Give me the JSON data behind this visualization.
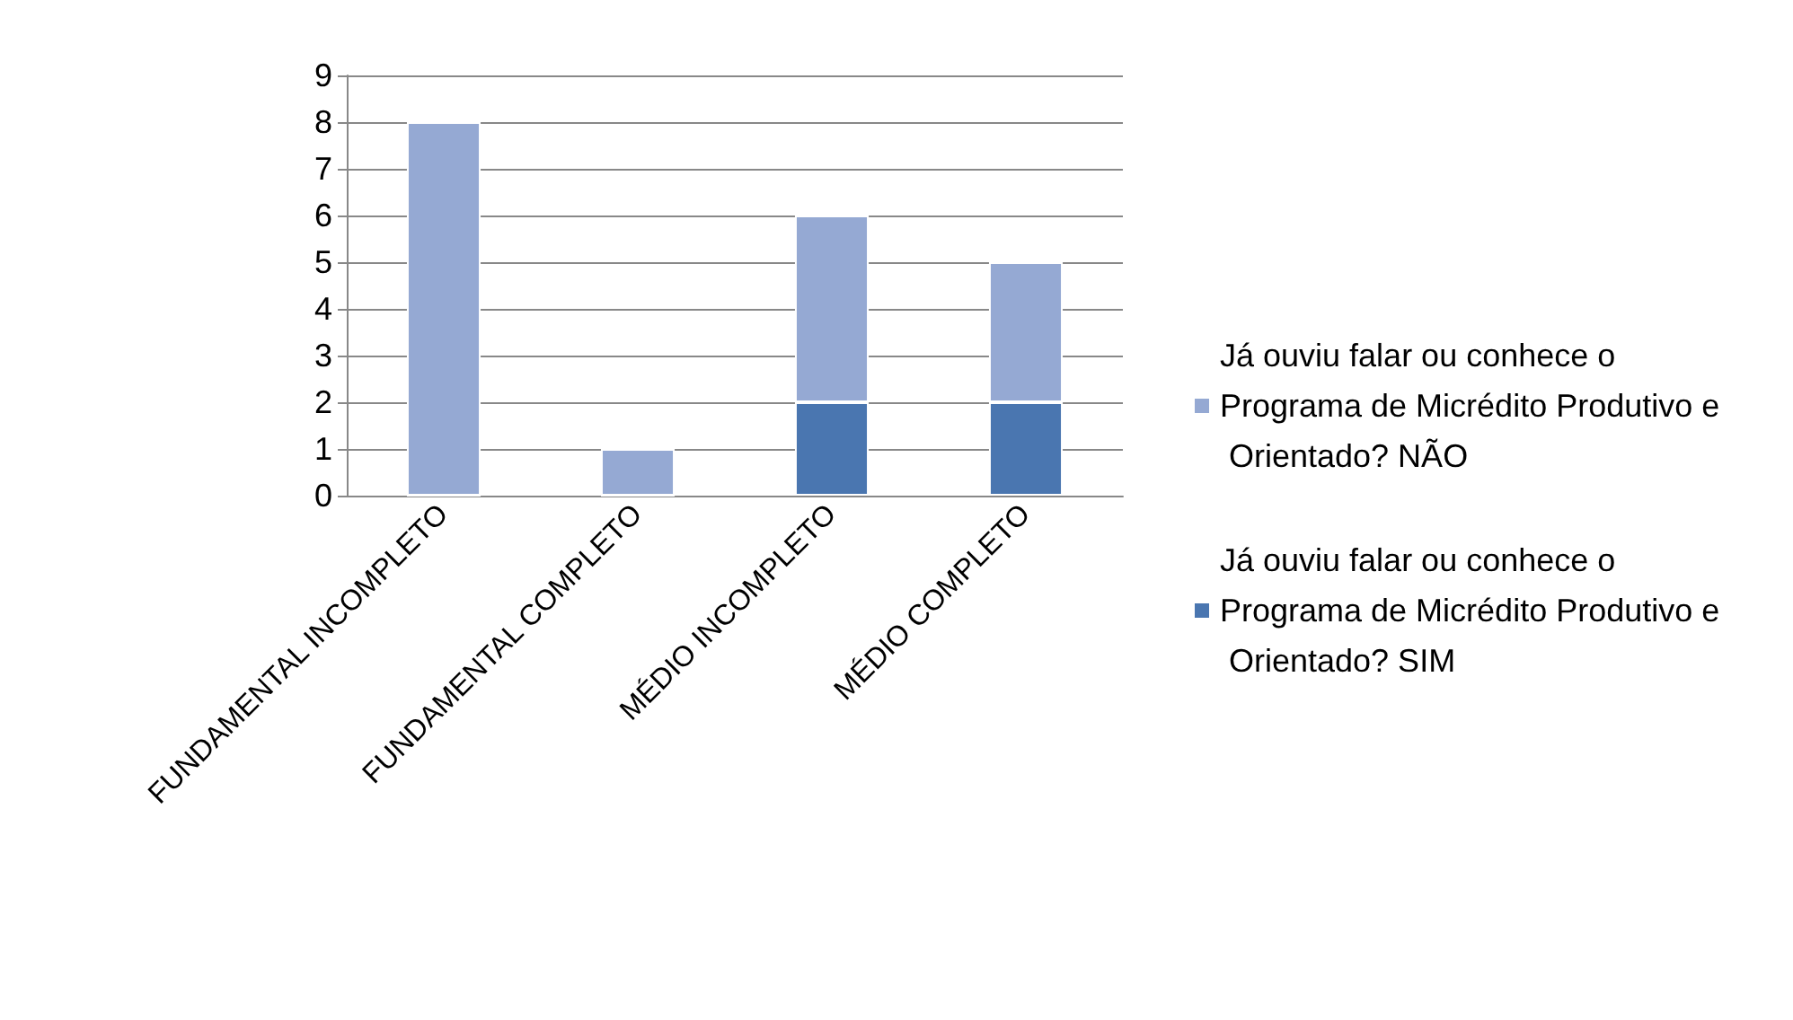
{
  "chart_data": {
    "type": "bar",
    "stacked": true,
    "categories": [
      "FUNDAMENTAL INCOMPLETO",
      "FUNDAMENTAL COMPLETO",
      "MÉDIO INCOMPLETO",
      "MÉDIO COMPLETO"
    ],
    "series": [
      {
        "name": "Já ouviu falar ou conhece o Programa de Micrédito Produtivo e Orientado? SIM",
        "color": "#4a76b0",
        "values": [
          0,
          0,
          2,
          2
        ]
      },
      {
        "name": "Já ouviu falar ou conhece o Programa de Micrédito Produtivo e Orientado? NÃO",
        "color": "#95a9d3",
        "values": [
          8,
          1,
          4,
          3
        ]
      }
    ],
    "ylim": [
      0,
      9
    ],
    "yticks": [
      0,
      1,
      2,
      3,
      4,
      5,
      6,
      7,
      8,
      9
    ],
    "grid": "y",
    "legend": "right"
  }
}
